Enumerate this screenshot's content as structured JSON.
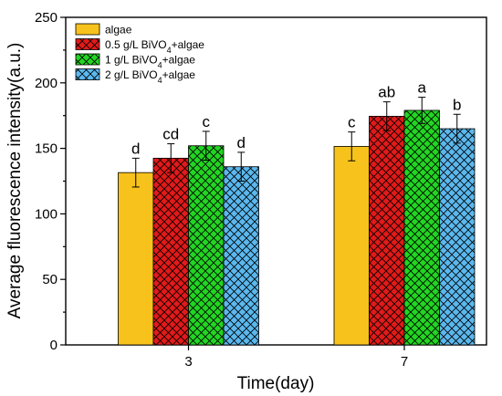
{
  "chart_data": {
    "type": "bar",
    "title": "",
    "xlabel": "Time(day)",
    "ylabel": "Average fluorescence intensity(a.u.)",
    "ylim": [
      0,
      250
    ],
    "yticks": [
      0,
      50,
      100,
      150,
      200,
      250
    ],
    "categories": [
      "3",
      "7"
    ],
    "grid": false,
    "legend_position": "top-left",
    "series": [
      {
        "name": "algae",
        "name_parts": [
          "algae"
        ],
        "color": "#f7c21c",
        "pattern": "none",
        "values": [
          131.5,
          151.5
        ],
        "errors": [
          11,
          11
        ],
        "sig": [
          "d",
          "c"
        ]
      },
      {
        "name": "0.5 g/L BiVO4+algae",
        "name_parts": [
          "0.5 g/L BiVO",
          "4",
          "+algae"
        ],
        "color": "#e11a1a",
        "pattern": "cross",
        "values": [
          142.5,
          174.5
        ],
        "errors": [
          11,
          11
        ],
        "sig": [
          "cd",
          "ab"
        ]
      },
      {
        "name": "1 g/L BiVO4+algae",
        "name_parts": [
          "1 g/L BiVO",
          "4",
          "+algae"
        ],
        "color": "#22d622",
        "pattern": "cross",
        "values": [
          152,
          179
        ],
        "errors": [
          11,
          10
        ],
        "sig": [
          "c",
          "a"
        ]
      },
      {
        "name": "2 g/L BiVO4+algae",
        "name_parts": [
          "2 g/L BiVO",
          "4",
          "+algae"
        ],
        "color": "#5bb8ee",
        "pattern": "cross",
        "values": [
          136,
          165
        ],
        "errors": [
          11,
          11
        ],
        "sig": [
          "d",
          "b"
        ]
      }
    ]
  }
}
